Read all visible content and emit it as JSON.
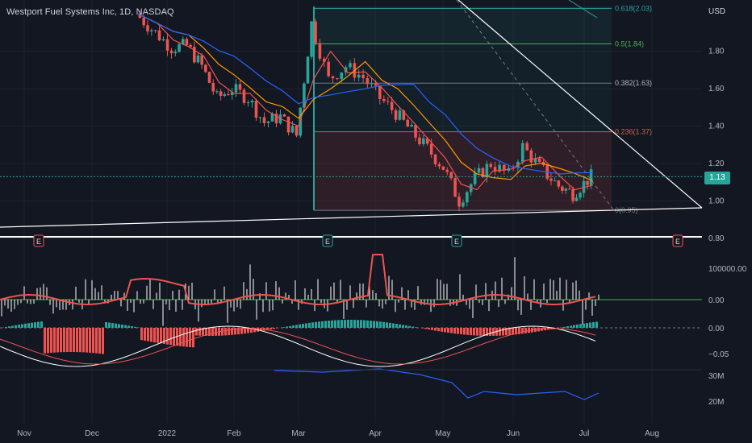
{
  "header": {
    "title": "Westport Fuel Systems Inc, 1D, NASDAQ",
    "currency": "USD",
    "last_price": "1.13"
  },
  "colors": {
    "background": "#131722",
    "up": "#26a69a",
    "down": "#ef5350",
    "grid": "#1e222d",
    "text": "#b2b5be"
  },
  "chart_data": [
    {
      "type": "candlestick",
      "title": "Westport Fuel Systems Inc, 1D, NASDAQ",
      "xlabel": "",
      "ylabel": "USD",
      "x_ticks": [
        "Nov",
        "Dec",
        "2022",
        "Feb",
        "Mar",
        "Apr",
        "May",
        "Jun",
        "Jul",
        "Aug"
      ],
      "y_ticks": [
        0.8,
        1.0,
        1.2,
        1.4,
        1.6,
        1.8
      ],
      "ylim": [
        0.78,
        2.06
      ],
      "last_price": 1.13,
      "earnings_markers": [
        {
          "label": "E",
          "date": "Nov",
          "kind": "past"
        },
        {
          "label": "E",
          "date": "Mar",
          "kind": "past"
        },
        {
          "label": "E",
          "date": "May",
          "kind": "past"
        },
        {
          "label": "E",
          "date": "Aug",
          "kind": "upcoming"
        }
      ],
      "fibonacci_levels": [
        {
          "label": "0.618(2.03)",
          "value": 2.03
        },
        {
          "label": "0.5(1.84)",
          "value": 1.84
        },
        {
          "label": "0.382(1.63)",
          "value": 1.63
        },
        {
          "label": "0.236(1.37)",
          "value": 1.37
        },
        {
          "label": "0(0.95)",
          "value": 0.95
        }
      ],
      "close_series": [
        {
          "date": "2021-12-20",
          "close": 2.0
        },
        {
          "date": "2021-12-28",
          "close": 1.9
        },
        {
          "date": "2022-01-04",
          "close": 1.82
        },
        {
          "date": "2022-01-11",
          "close": 1.83
        },
        {
          "date": "2022-01-18",
          "close": 1.72
        },
        {
          "date": "2022-01-25",
          "close": 1.55
        },
        {
          "date": "2022-02-01",
          "close": 1.6
        },
        {
          "date": "2022-02-08",
          "close": 1.55
        },
        {
          "date": "2022-02-15",
          "close": 1.42
        },
        {
          "date": "2022-02-22",
          "close": 1.45
        },
        {
          "date": "2022-03-01",
          "close": 1.35
        },
        {
          "date": "2022-03-07",
          "close": 1.95
        },
        {
          "date": "2022-03-14",
          "close": 1.65
        },
        {
          "date": "2022-03-21",
          "close": 1.72
        },
        {
          "date": "2022-03-28",
          "close": 1.66
        },
        {
          "date": "2022-04-04",
          "close": 1.55
        },
        {
          "date": "2022-04-11",
          "close": 1.47
        },
        {
          "date": "2022-04-18",
          "close": 1.37
        },
        {
          "date": "2022-04-25",
          "close": 1.28
        },
        {
          "date": "2022-05-02",
          "close": 1.18
        },
        {
          "date": "2022-05-09",
          "close": 1.0
        },
        {
          "date": "2022-05-16",
          "close": 1.12
        },
        {
          "date": "2022-05-23",
          "close": 1.2
        },
        {
          "date": "2022-05-31",
          "close": 1.14
        },
        {
          "date": "2022-06-06",
          "close": 1.29
        },
        {
          "date": "2022-06-13",
          "close": 1.18
        },
        {
          "date": "2022-06-21",
          "close": 1.08
        },
        {
          "date": "2022-06-27",
          "close": 1.04
        },
        {
          "date": "2022-07-05",
          "close": 1.13
        }
      ],
      "volume_axis_ticks": [
        "30M",
        "20M"
      ],
      "macd_axis_ticks": [
        "0.00",
        "−0.05"
      ],
      "oscillator_axis_ticks": [
        "100000.00",
        "0.00"
      ]
    }
  ]
}
